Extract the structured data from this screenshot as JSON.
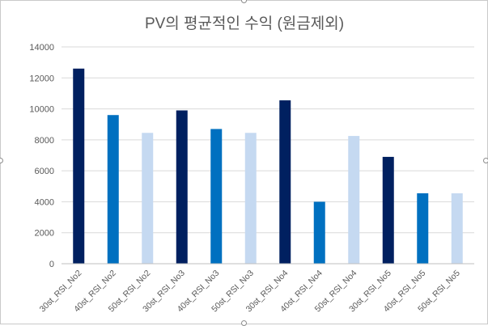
{
  "chart_data": {
    "type": "bar",
    "title": "PV의 평균적인 수익 (원금제외)",
    "xlabel": "",
    "ylabel": "",
    "ylim": [
      0,
      14000
    ],
    "yticks": [
      "0",
      "2000",
      "4000",
      "6000",
      "8000",
      "10000",
      "12000",
      "14000"
    ],
    "grid": true,
    "legend": "none",
    "categories": [
      "30st_RSI_No2",
      "40st_RSI_No2",
      "50st_RSI_No2",
      "30st_RSI_No3",
      "40st_RSI_No3",
      "50st_RSI_No3",
      "30st_RSI_No4",
      "40st_RSI_No4",
      "50st_RSI_No4",
      "30st_RSI_No5",
      "40st_RSI_No5",
      "50st_RSI_No5"
    ],
    "values": [
      12600,
      9600,
      8450,
      9900,
      8700,
      8450,
      10550,
      4000,
      8250,
      6900,
      4550,
      4550
    ],
    "bar_colors": [
      "#002060",
      "#0070c0",
      "#c5d9f1",
      "#002060",
      "#0070c0",
      "#c5d9f1",
      "#002060",
      "#0070c0",
      "#c5d9f1",
      "#002060",
      "#0070c0",
      "#c5d9f1"
    ],
    "gridline_color": "#d9d9d9",
    "axis_color": "#bfbfbf"
  }
}
